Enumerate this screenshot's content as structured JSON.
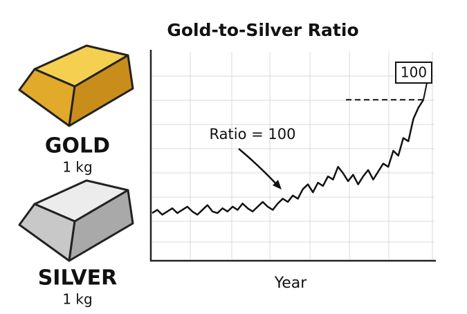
{
  "chart_data": {
    "type": "line",
    "title": "Gold-to-Silver Ratio",
    "x_label": "Year",
    "values": [
      29,
      31,
      28,
      30,
      32,
      29,
      31,
      33,
      30,
      28,
      31,
      34,
      30,
      29,
      32,
      30,
      33,
      31,
      35,
      32,
      30,
      33,
      36,
      33,
      31,
      35,
      38,
      36,
      40,
      38,
      44,
      47,
      42,
      48,
      46,
      52,
      50,
      58,
      54,
      49,
      53,
      47,
      52,
      56,
      50,
      55,
      60,
      58,
      68,
      65,
      76,
      74,
      88,
      95,
      100
    ],
    "color": "#111111",
    "ylim": [
      0,
      130
    ],
    "annotation": "Ratio = 100",
    "end_label": "100"
  },
  "illustrations": [
    {
      "label": "GOLD",
      "weight": "1 kg"
    },
    {
      "label": "SILVER",
      "weight": "1 kg"
    }
  ]
}
